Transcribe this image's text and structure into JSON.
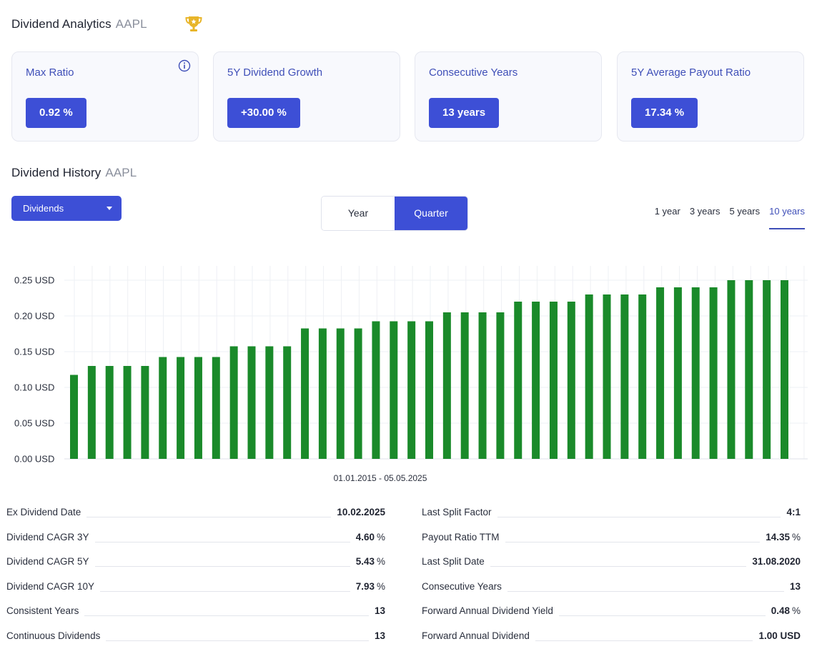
{
  "analytics": {
    "title": "Dividend Analytics",
    "ticker": "AAPL"
  },
  "cards": [
    {
      "label": "Max Ratio",
      "value": "0.92 %"
    },
    {
      "label": "5Y Dividend Growth",
      "value": "+30.00 %"
    },
    {
      "label": "Consecutive Years",
      "value": "13 years"
    },
    {
      "label": "5Y Average Payout Ratio",
      "value": "17.34 %"
    }
  ],
  "history": {
    "title": "Dividend History",
    "ticker": "AAPL"
  },
  "controls": {
    "dropdown_label": "Dividends",
    "segments": [
      "Year",
      "Quarter"
    ],
    "active_segment": "Quarter",
    "ranges": [
      "1 year",
      "3 years",
      "5 years",
      "10 years"
    ],
    "active_range": "10 years"
  },
  "colors": {
    "accent": "#3d4fd6",
    "bar": "#1a8a2a",
    "trophy": "#e8b52a"
  },
  "chart_data": {
    "type": "bar",
    "xlabel": "01.01.2015 - 05.05.2025",
    "ylabel": "",
    "ylim": [
      0,
      0.25
    ],
    "yticks": [
      "0.00 USD",
      "0.05 USD",
      "0.10 USD",
      "0.15 USD",
      "0.20 USD",
      "0.25 USD"
    ],
    "grid": true,
    "values": [
      0.1175,
      0.13,
      0.13,
      0.13,
      0.13,
      0.1425,
      0.1425,
      0.1425,
      0.1425,
      0.1575,
      0.1575,
      0.1575,
      0.1575,
      0.1825,
      0.1825,
      0.1825,
      0.1825,
      0.1925,
      0.1925,
      0.1925,
      0.1925,
      0.205,
      0.205,
      0.205,
      0.205,
      0.22,
      0.22,
      0.22,
      0.22,
      0.23,
      0.23,
      0.23,
      0.23,
      0.24,
      0.24,
      0.24,
      0.24,
      0.25,
      0.25,
      0.25,
      0.25
    ]
  },
  "stats_left": [
    {
      "label": "Ex Dividend Date",
      "value": "10.02.2025",
      "unit": ""
    },
    {
      "label": "Dividend CAGR 3Y",
      "value": "4.60",
      "unit": "%"
    },
    {
      "label": "Dividend CAGR 5Y",
      "value": "5.43",
      "unit": "%"
    },
    {
      "label": "Dividend CAGR 10Y",
      "value": "7.93",
      "unit": "%"
    },
    {
      "label": "Consistent Years",
      "value": "13",
      "unit": ""
    },
    {
      "label": "Continuous Dividends",
      "value": "13",
      "unit": ""
    }
  ],
  "stats_right": [
    {
      "label": "Last Split Factor",
      "value": "4:1",
      "unit": ""
    },
    {
      "label": "Payout Ratio TTM",
      "value": "14.35",
      "unit": "%"
    },
    {
      "label": "Last Split Date",
      "value": "31.08.2020",
      "unit": ""
    },
    {
      "label": "Consecutive Years",
      "value": "13",
      "unit": ""
    },
    {
      "label": "Forward Annual Dividend Yield",
      "value": "0.48",
      "unit": "%"
    },
    {
      "label": "Forward Annual Dividend",
      "value": "1.00 USD",
      "unit": ""
    }
  ]
}
